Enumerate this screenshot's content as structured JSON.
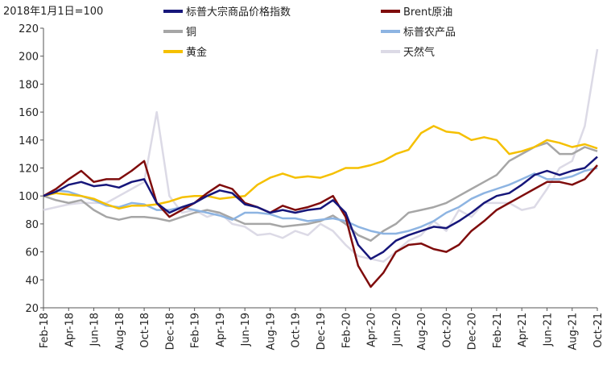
{
  "chart_data": {
    "type": "line",
    "annotation": "2018年1月1日=100",
    "categories": [
      "Feb-18",
      null,
      "Apr-18",
      null,
      "Jun-18",
      null,
      "Aug-18",
      null,
      "Oct-18",
      null,
      "Dec-18",
      null,
      "Feb-19",
      null,
      "Apr-19",
      null,
      "Jun-19",
      null,
      "Aug-19",
      null,
      "Oct-19",
      null,
      "Dec-19",
      null,
      "Feb-20",
      null,
      "Apr-20",
      null,
      "Jun-20",
      null,
      "Aug-20",
      null,
      "Oct-20",
      null,
      "Dec-20",
      null,
      "Feb-21",
      null,
      "Apr-21",
      null,
      "Jun-21",
      null,
      "Aug-21",
      null,
      "Oct-21"
    ],
    "ylim": [
      20,
      220
    ],
    "yticks": [
      20,
      40,
      60,
      80,
      100,
      120,
      140,
      160,
      180,
      200,
      220
    ],
    "series": [
      {
        "name": "标普大宗商品价格指数",
        "color": "#16167a",
        "values": [
          100,
          103,
          108,
          110,
          107,
          108,
          106,
          110,
          112,
          95,
          88,
          92,
          95,
          100,
          104,
          102,
          94,
          92,
          88,
          90,
          88,
          90,
          91,
          97,
          88,
          65,
          55,
          60,
          68,
          72,
          75,
          78,
          77,
          82,
          88,
          95,
          100,
          102,
          108,
          115,
          118,
          115,
          118,
          120,
          128
        ]
      },
      {
        "name": "Brent原油",
        "color": "#7f0c0c",
        "values": [
          100,
          105,
          112,
          118,
          110,
          112,
          112,
          118,
          125,
          95,
          85,
          90,
          95,
          102,
          108,
          105,
          95,
          92,
          88,
          93,
          90,
          92,
          95,
          100,
          85,
          50,
          35,
          45,
          60,
          65,
          66,
          62,
          60,
          65,
          75,
          82,
          90,
          95,
          100,
          105,
          110,
          110,
          108,
          112,
          122
        ]
      },
      {
        "name": "铜",
        "color": "#a6a6a6",
        "values": [
          100,
          97,
          95,
          97,
          90,
          85,
          83,
          85,
          85,
          84,
          82,
          85,
          88,
          90,
          88,
          84,
          80,
          80,
          80,
          78,
          79,
          80,
          82,
          86,
          80,
          72,
          68,
          75,
          80,
          88,
          90,
          92,
          95,
          100,
          105,
          110,
          115,
          125,
          130,
          135,
          138,
          130,
          130,
          135,
          132
        ]
      },
      {
        "name": "标普农产品",
        "color": "#8db4e2",
        "values": [
          100,
          104,
          103,
          100,
          97,
          93,
          92,
          95,
          94,
          90,
          90,
          92,
          90,
          88,
          86,
          83,
          88,
          88,
          87,
          84,
          84,
          82,
          83,
          84,
          82,
          78,
          75,
          73,
          73,
          75,
          78,
          82,
          88,
          92,
          98,
          102,
          105,
          108,
          112,
          116,
          112,
          112,
          114,
          118,
          120
        ]
      },
      {
        "name": "黄金",
        "color": "#f5c000",
        "values": [
          100,
          102,
          101,
          100,
          98,
          94,
          91,
          93,
          93,
          94,
          96,
          99,
          100,
          100,
          98,
          99,
          100,
          108,
          113,
          116,
          113,
          114,
          113,
          116,
          120,
          120,
          122,
          125,
          130,
          133,
          145,
          150,
          146,
          145,
          140,
          142,
          140,
          130,
          132,
          135,
          140,
          138,
          135,
          137,
          134
        ]
      },
      {
        "name": "天然气",
        "color": "#dcdae6",
        "values": [
          90,
          92,
          94,
          95,
          95,
          95,
          100,
          105,
          110,
          160,
          100,
          88,
          90,
          85,
          88,
          80,
          78,
          72,
          73,
          70,
          75,
          72,
          80,
          75,
          65,
          57,
          55,
          53,
          60,
          68,
          72,
          82,
          75,
          90,
          85,
          95,
          95,
          95,
          90,
          92,
          105,
          120,
          125,
          150,
          205
        ]
      }
    ]
  }
}
